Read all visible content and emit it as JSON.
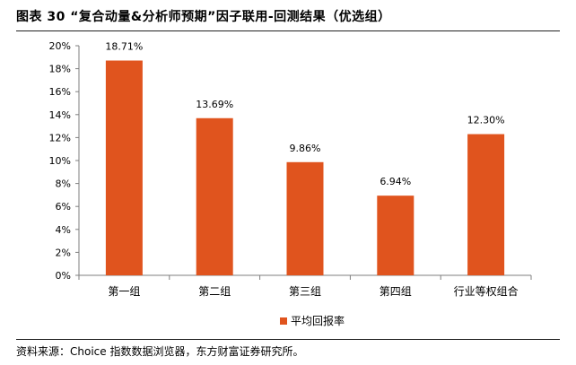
{
  "figure": {
    "title": "图表 30 “复合动量&分析师预期”因子联用-回测结果（优选组）",
    "source": "资料来源：Choice 指数数据浏览器，东方财富证券研究所。"
  },
  "chart_data": {
    "type": "bar",
    "categories": [
      "第一组",
      "第二组",
      "第三组",
      "第四组",
      "行业等权组合"
    ],
    "series": [
      {
        "name": "平均回报率",
        "values": [
          18.71,
          13.69,
          9.86,
          6.94,
          12.3
        ],
        "labels": [
          "18.71%",
          "13.69%",
          "9.86%",
          "6.94%",
          "12.30%"
        ],
        "color": "#E0541E"
      }
    ],
    "y_ticks": [
      "0%",
      "2%",
      "4%",
      "6%",
      "8%",
      "10%",
      "12%",
      "14%",
      "16%",
      "18%",
      "20%"
    ],
    "ylim": [
      0,
      20
    ],
    "grid": false,
    "legend_position": "bottom"
  }
}
